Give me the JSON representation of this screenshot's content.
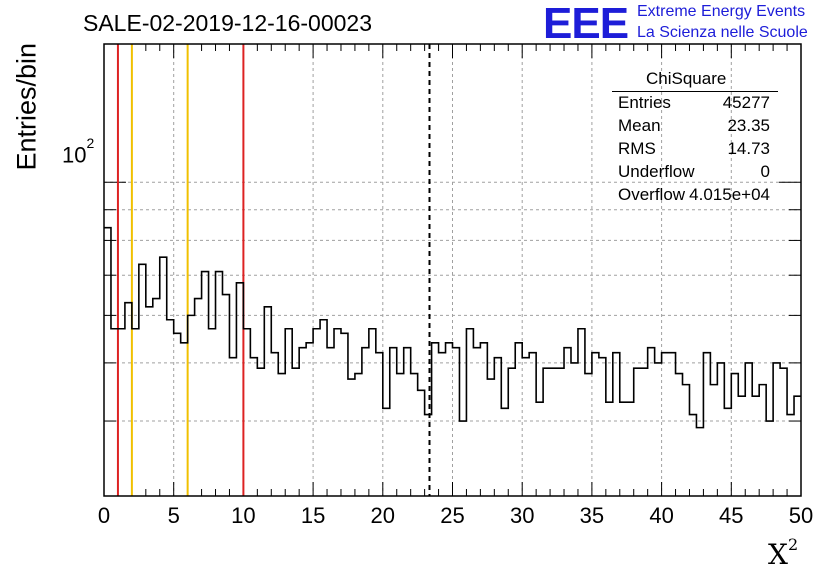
{
  "header": {
    "run_id": "SALE-02-2019-12-16-00023"
  },
  "logo": {
    "mark": "EEE",
    "line1": "Extreme Energy Events",
    "line2": "La Scienza nelle Scuole",
    "color": "#1d1dd8"
  },
  "stats": {
    "title": "ChiSquare",
    "rows": [
      {
        "key": "Entries",
        "value": "45277"
      },
      {
        "key": "Mean",
        "value": "23.35"
      },
      {
        "key": "RMS",
        "value": "14.73"
      },
      {
        "key": "Underflow",
        "value": "0"
      },
      {
        "key": "Overflow",
        "value": "4.015e+04"
      }
    ]
  },
  "chart_data": {
    "type": "histogram",
    "title": "SALE-02-2019-12-16-00023",
    "xlabel": "X²",
    "ylabel": "Entries/bin",
    "y_scale": "log",
    "xlim": [
      0,
      50
    ],
    "ylim": [
      30,
      170
    ],
    "x_ticks": [
      "0",
      "5",
      "10",
      "15",
      "20",
      "25",
      "30",
      "35",
      "40",
      "45",
      "50"
    ],
    "y_tick_decade": "10",
    "y_tick_decade_exp": "2",
    "grid": true,
    "bin_width": 0.5,
    "values": [
      84,
      57,
      57,
      63,
      57,
      73,
      62,
      64,
      75,
      59,
      56,
      54,
      60,
      64,
      71,
      57,
      71,
      65,
      51,
      68,
      57,
      51,
      49,
      62,
      52,
      48,
      57,
      49,
      53,
      54,
      57,
      59,
      53,
      57,
      56,
      47,
      48,
      53,
      57,
      52,
      42,
      53,
      48,
      53,
      48,
      45,
      41,
      54,
      52,
      54,
      53,
      40,
      57,
      53,
      54,
      47,
      51,
      42,
      49,
      54,
      51,
      52,
      43,
      49,
      49,
      49,
      53,
      50,
      57,
      48,
      52,
      51,
      43,
      52,
      43,
      43,
      49,
      49,
      53,
      50,
      52,
      52,
      48,
      46,
      41,
      39,
      52,
      46,
      50,
      42,
      48,
      44,
      50,
      44,
      46,
      40,
      50,
      49,
      41,
      44
    ],
    "reference_lines": [
      {
        "x": 1,
        "color": "#dd2222",
        "style": "solid"
      },
      {
        "x": 2,
        "color": "#f0c000",
        "style": "solid"
      },
      {
        "x": 6,
        "color": "#f0c000",
        "style": "solid"
      },
      {
        "x": 10,
        "color": "#dd2222",
        "style": "solid"
      },
      {
        "x": 23.35,
        "color": "#000000",
        "style": "dashed"
      }
    ]
  }
}
